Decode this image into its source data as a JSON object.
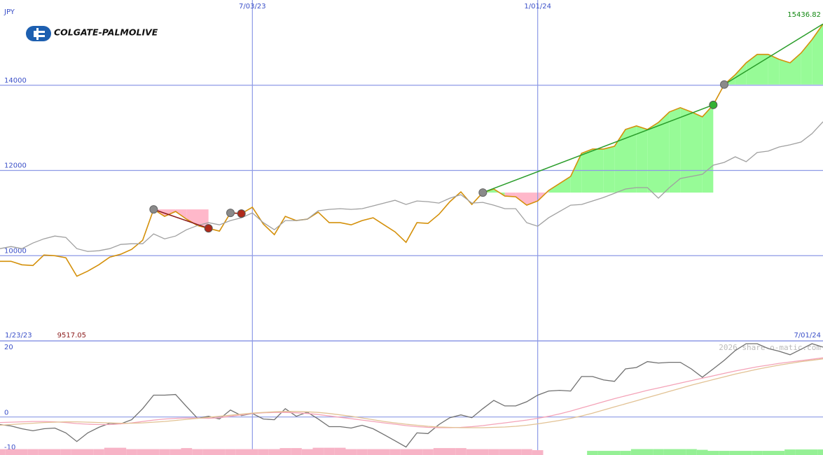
{
  "chart_data": [
    {
      "type": "line",
      "title": "COLGATE-PALMOLIVE",
      "ylabel": "JPY",
      "categories": [
        "1/23/23",
        null,
        null,
        null,
        null,
        null,
        null,
        null,
        null,
        null,
        null,
        null,
        null,
        null,
        null,
        null,
        null,
        null,
        null,
        null,
        null,
        null,
        null,
        "7/03/23",
        null,
        null,
        null,
        null,
        null,
        null,
        null,
        null,
        null,
        null,
        null,
        null,
        null,
        null,
        null,
        null,
        null,
        null,
        null,
        null,
        null,
        null,
        null,
        null,
        null,
        "1/01/24",
        null,
        null,
        null,
        null,
        null,
        null,
        null,
        null,
        null,
        null,
        null,
        null,
        null,
        null,
        null,
        null,
        null,
        null,
        null,
        null,
        null,
        null,
        null,
        null,
        null,
        "7/01/24"
      ],
      "series": [
        {
          "color": "#d4900a",
          "values": [
            9868,
            9868,
            9786,
            9770,
            10016,
            10000,
            9951,
            9517.05,
            9638,
            9786,
            9967,
            10033,
            10148,
            10362,
            11086,
            10922,
            11037,
            10856,
            10708,
            10642,
            10576,
            11004,
            10988,
            11136,
            10741,
            10494,
            10922,
            10823,
            10856,
            11021,
            10774,
            10774,
            10724,
            10823,
            10889,
            10724,
            10560,
            10313,
            10774,
            10757,
            10971,
            11267,
            11498,
            11202,
            11481,
            11564,
            11399,
            11383,
            11185,
            11284,
            11531,
            11695,
            11860,
            12403,
            12502,
            12502,
            12568,
            12963,
            13045,
            12963,
            13127,
            13374,
            13473,
            13374,
            13259,
            13539,
            14016,
            14247,
            14527,
            14724,
            14724,
            14609,
            14527,
            14757,
            15070,
            15436.82
          ]
        },
        {
          "color": "#a0a0a0",
          "values": [
            10165,
            10214,
            10165,
            10296,
            10395,
            10461,
            10428,
            10165,
            10099,
            10115,
            10165,
            10263,
            10280,
            10280,
            10510,
            10395,
            10461,
            10609,
            10708,
            10774,
            10724,
            10823,
            10889,
            11004,
            10774,
            10609,
            10823,
            10823,
            10856,
            11053,
            11086,
            11103,
            11086,
            11103,
            11169,
            11235,
            11300,
            11202,
            11284,
            11267,
            11235,
            11350,
            11432,
            11235,
            11251,
            11185,
            11103,
            11103,
            10774,
            10691,
            10889,
            11037,
            11185,
            11202,
            11284,
            11366,
            11465,
            11564,
            11597,
            11597,
            11350,
            11597,
            11811,
            11860,
            11909,
            12123,
            12189,
            12321,
            12206,
            12420,
            12453,
            12551,
            12602,
            12667,
            12864,
            13144
          ]
        }
      ],
      "ylim": [
        8000,
        16000
      ],
      "yticks": [
        10000,
        12000,
        14000
      ],
      "grid": true,
      "max_color": "#118811",
      "min_color": "#8b1a1a"
    },
    {
      "type": "line",
      "annotation": "2026 share-o-matic.com",
      "series": [
        {
          "color": "#707070",
          "values": [
            -2.2,
            -2.6,
            -3.4,
            -4.0,
            -3.4,
            -3.2,
            -4.6,
            -7.1,
            -4.6,
            -3.0,
            -1.8,
            -2.0,
            -0.8,
            2.4,
            6.3,
            6.3,
            6.5,
            3.0,
            -0.4,
            0.2,
            -0.6,
            2.0,
            0.4,
            1.0,
            -0.6,
            -0.8,
            2.4,
            0.2,
            1.4,
            -0.6,
            -2.8,
            -2.8,
            -3.2,
            -2.4,
            -3.4,
            -5.1,
            -6.9,
            -8.7,
            -4.6,
            -4.8,
            -2.2,
            -0.2,
            0.6,
            -0.2,
            2.4,
            4.8,
            3.2,
            3.2,
            4.4,
            6.3,
            7.5,
            7.7,
            7.5,
            11.7,
            11.7,
            10.7,
            10.3,
            13.9,
            14.3,
            16.0,
            15.6,
            15.8,
            15.8,
            13.9,
            11.5,
            13.9,
            16.4,
            19.2,
            21.2,
            21.2,
            19.8,
            19.0,
            18.0,
            19.6,
            21.2,
            20.2
          ]
        },
        {
          "color": "#f4a3b8",
          "values": [
            -1.6,
            -1.5,
            -1.4,
            -1.3,
            -1.3,
            -1.4,
            -1.6,
            -1.9,
            -2.1,
            -2.2,
            -2.2,
            -2.0,
            -1.7,
            -1.3,
            -0.9,
            -0.6,
            -0.4,
            -0.3,
            -0.3,
            -0.4,
            -0.2,
            0.2,
            0.6,
            1.0,
            1.2,
            1.3,
            1.3,
            1.2,
            1.0,
            0.7,
            0.3,
            -0.1,
            -0.5,
            -0.9,
            -1.3,
            -1.7,
            -2.1,
            -2.5,
            -2.8,
            -3.0,
            -3.1,
            -3.1,
            -3.0,
            -2.8,
            -2.5,
            -2.1,
            -1.7,
            -1.3,
            -0.9,
            -0.4,
            0.2,
            0.9,
            1.7,
            2.6,
            3.5,
            4.4,
            5.3,
            6.1,
            6.9,
            7.7,
            8.4,
            9.1,
            9.8,
            10.5,
            11.2,
            11.9,
            12.6,
            13.3,
            13.9,
            14.5,
            15.0,
            15.5,
            15.9,
            16.3,
            16.7,
            17.1
          ]
        },
        {
          "color": "#e2c294",
          "values": [
            -2.4,
            -2.2,
            -2.0,
            -1.8,
            -1.6,
            -1.5,
            -1.4,
            -1.4,
            -1.5,
            -1.6,
            -1.7,
            -1.8,
            -1.8,
            -1.7,
            -1.5,
            -1.3,
            -1.0,
            -0.7,
            -0.4,
            -0.1,
            0.2,
            0.5,
            0.8,
            1.1,
            1.3,
            1.5,
            1.6,
            1.6,
            1.5,
            1.3,
            1.0,
            0.6,
            0.2,
            -0.3,
            -0.8,
            -1.3,
            -1.7,
            -2.1,
            -2.4,
            -2.7,
            -2.9,
            -3.0,
            -3.1,
            -3.1,
            -3.1,
            -3.0,
            -2.9,
            -2.7,
            -2.4,
            -2.0,
            -1.5,
            -1.0,
            -0.4,
            0.3,
            1.1,
            2.0,
            2.9,
            3.8,
            4.7,
            5.6,
            6.5,
            7.4,
            8.3,
            9.2,
            10.0,
            10.8,
            11.6,
            12.4,
            13.1,
            13.8,
            14.4,
            15.0,
            15.5,
            16.0,
            16.4,
            16.8
          ]
        }
      ],
      "bars": [
        {
          "color": "#f7b3c6",
          "values": [
            -9.3,
            -9.3,
            -9.3,
            -9.3,
            -9.3,
            -9.3,
            -9.3,
            -9.3,
            -9.3,
            -9.3,
            -8.9,
            -8.9,
            -9.3,
            -9.3,
            -9.3,
            -9.3,
            -9.3,
            -9.0,
            -9.3,
            -9.3,
            -9.3,
            -9.3,
            -9.3,
            -9.3,
            -9.3,
            -9.3,
            -9.0,
            -9.0,
            -9.3,
            -8.9,
            -8.9,
            -8.9,
            -9.3,
            -9.3,
            -9.3,
            -9.3,
            -9.3,
            -9.3,
            -9.3,
            -9.3,
            -9.0,
            -9.0,
            -9.0,
            -9.3,
            -9.3,
            -9.3,
            -9.3,
            -9.3,
            -9.3,
            -9.6,
            null,
            null,
            null,
            null,
            null,
            null,
            null,
            null,
            null,
            null,
            null,
            null,
            null,
            null,
            null,
            null,
            null,
            null,
            null,
            null,
            null,
            null,
            null,
            null,
            null,
            null
          ]
        },
        {
          "color": "#95f095",
          "values": [
            null,
            null,
            null,
            null,
            null,
            null,
            null,
            null,
            null,
            null,
            null,
            null,
            null,
            null,
            null,
            null,
            null,
            null,
            null,
            null,
            null,
            null,
            null,
            null,
            null,
            null,
            null,
            null,
            null,
            null,
            null,
            null,
            null,
            null,
            null,
            null,
            null,
            null,
            null,
            null,
            null,
            null,
            null,
            null,
            null,
            null,
            null,
            null,
            null,
            null,
            null,
            null,
            null,
            null,
            -9.8,
            -9.8,
            -9.8,
            -9.8,
            -9.3,
            -9.3,
            -9.3,
            -9.3,
            -9.3,
            -9.3,
            -9.5,
            -9.8,
            -9.8,
            -9.8,
            -9.8,
            -9.8,
            -9.8,
            -9.8,
            -9.4,
            -9.4,
            -9.4,
            -9.4
          ]
        }
      ],
      "ylim": [
        -11,
        22
      ],
      "yticks": [
        -10,
        0,
        20
      ],
      "grid": false,
      "zero_line": true
    }
  ]
}
